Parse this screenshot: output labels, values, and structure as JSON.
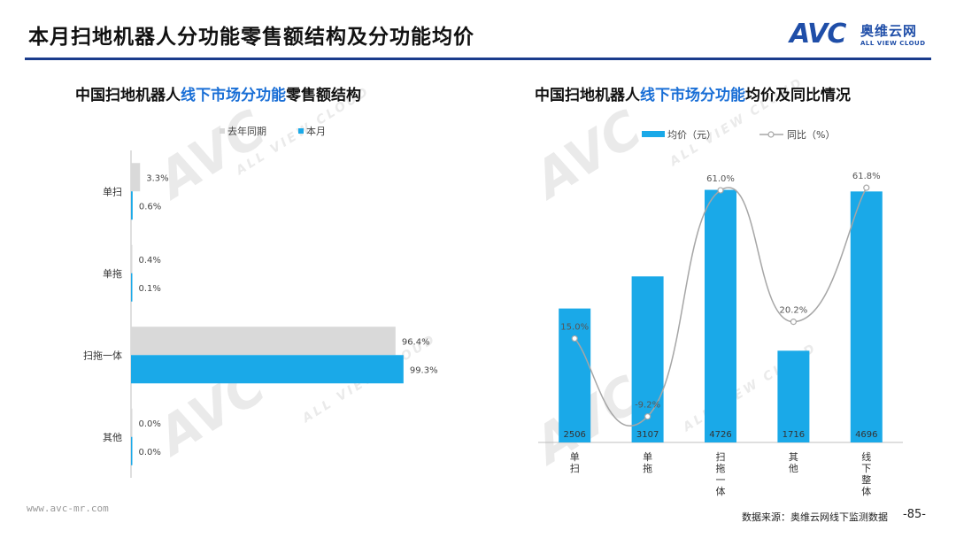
{
  "header": {
    "title": "本月扫地机器人分功能零售额结构及分功能均价",
    "logo_mark": "AVC",
    "logo_cn": "奥维云网",
    "logo_en": "ALL VIEW CLOUD"
  },
  "left_chart_title": {
    "pre": "中国扫地机器人",
    "hl": "线下市场分功能",
    "post": "零售额结构"
  },
  "right_chart_title": {
    "pre": "中国扫地机器人",
    "hl": "线下市场分功能",
    "post": "均价及同比情况"
  },
  "footer": {
    "url": "www.avc-mr.com",
    "source": "数据来源：奥维云网线下监测数据",
    "page": "-85-"
  },
  "colors": {
    "current": "#1aa9e8",
    "last_year": "#d9d9d9",
    "line": "#a6a6a6",
    "title_rule": "#1a3c8c",
    "accent": "#1a6fd6"
  },
  "chart_data": [
    {
      "type": "bar",
      "orientation": "horizontal",
      "categories": [
        "单扫",
        "单拖",
        "扫拖一体",
        "其他"
      ],
      "series": [
        {
          "name": "去年同期",
          "values": [
            3.3,
            0.4,
            96.4,
            0.0
          ],
          "labels": [
            "3.3%",
            "0.4%",
            "96.4%",
            "0.0%"
          ]
        },
        {
          "name": "本月",
          "values": [
            0.6,
            0.1,
            99.3,
            0.0
          ],
          "labels": [
            "0.6%",
            "0.1%",
            "99.3%",
            "0.0%"
          ]
        }
      ],
      "xlim": [
        0,
        100
      ],
      "legend": "top-center"
    },
    {
      "type": "bar+line",
      "categories": [
        "单扫",
        "单拖",
        "扫拖一体",
        "其他",
        "线下整体"
      ],
      "bar_series": {
        "name": "均价（元）",
        "values": [
          2506,
          3107,
          4726,
          1716,
          4696
        ]
      },
      "line_series": {
        "name": "同比（%）",
        "values": [
          15.0,
          -9.2,
          61.0,
          20.2,
          61.8
        ],
        "labels": [
          "15.0%",
          "-9.2%",
          "61.0%",
          "20.2%",
          "61.8%"
        ]
      },
      "legend": "top-center"
    }
  ]
}
